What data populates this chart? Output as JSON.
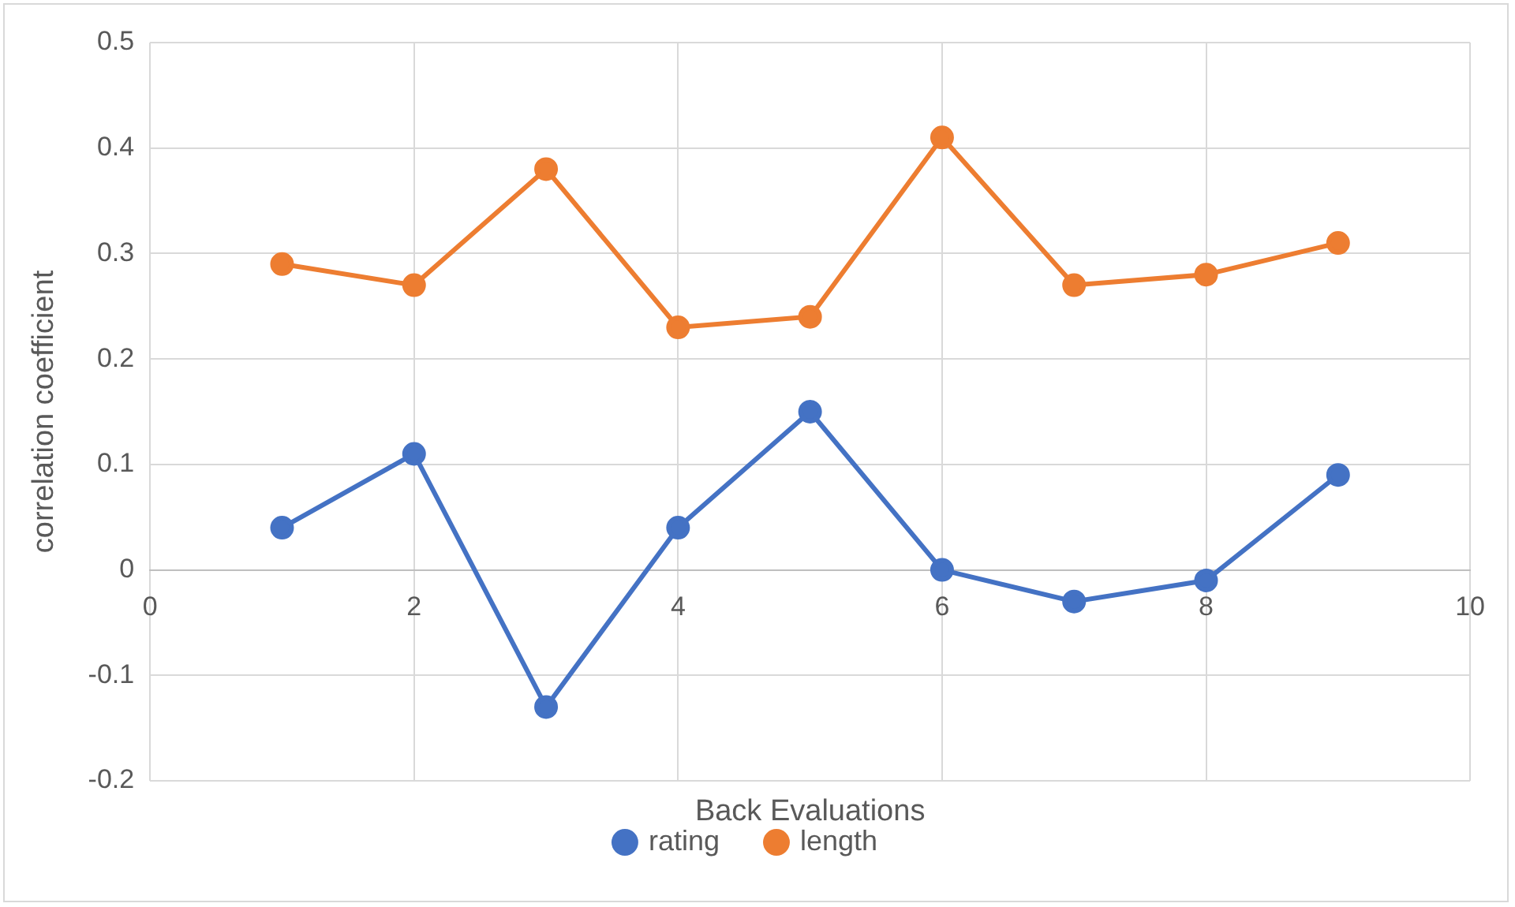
{
  "chart_data": {
    "type": "line",
    "xlabel": "Back Evaluations",
    "ylabel": "correlation coefficient",
    "x": [
      1,
      2,
      3,
      4,
      5,
      6,
      7,
      8,
      9
    ],
    "series": [
      {
        "name": "rating",
        "color": "#4472c4",
        "values": [
          0.04,
          0.11,
          -0.13,
          0.04,
          0.15,
          0,
          -0.03,
          -0.01,
          0.09
        ]
      },
      {
        "name": "length",
        "color": "#ed7d31",
        "values": [
          0.29,
          0.27,
          0.38,
          0.23,
          0.24,
          0.41,
          0.27,
          0.28,
          0.31
        ]
      }
    ],
    "xlim": [
      0,
      10
    ],
    "xticks": [
      0,
      2,
      4,
      6,
      8,
      10
    ],
    "ylim": [
      -0.2,
      0.5
    ],
    "yticks": [
      -0.2,
      -0.1,
      0,
      0.1,
      0.2,
      0.3,
      0.4,
      0.5
    ],
    "grid": true,
    "legend": "bottom",
    "marker": "circle",
    "line_style": "solid"
  }
}
